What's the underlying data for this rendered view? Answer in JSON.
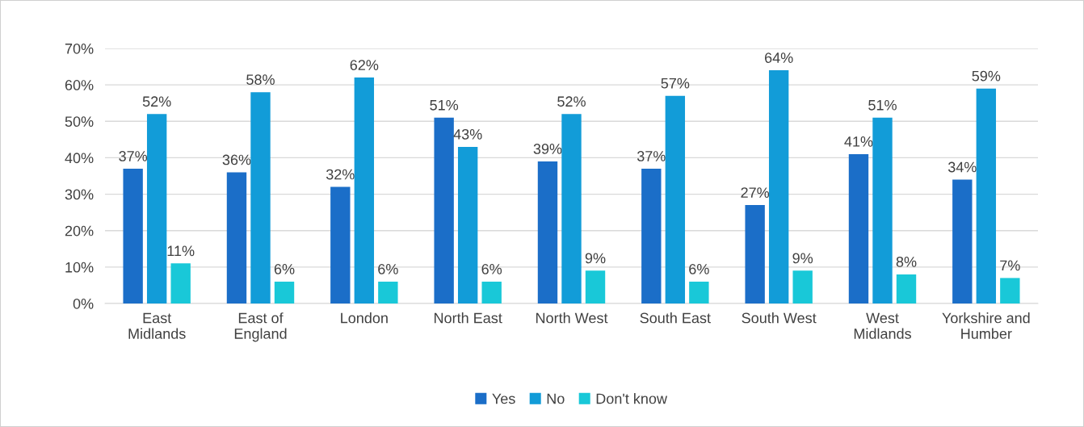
{
  "chart_data": {
    "type": "bar",
    "categories": [
      "East\nMidlands",
      "East of\nEngland",
      "London",
      "North East",
      "North West",
      "South East",
      "South West",
      "West\nMidlands",
      "Yorkshire and\nHumber"
    ],
    "series": [
      {
        "name": "Yes",
        "color": "#1b6ec8",
        "values": [
          37,
          36,
          32,
          51,
          39,
          37,
          27,
          41,
          34
        ],
        "value_labels": [
          "37%",
          "36%",
          "32%",
          "51%",
          "39%",
          "37%",
          "27%",
          "41%",
          "34%"
        ]
      },
      {
        "name": "No",
        "color": "#129cd8",
        "values": [
          52,
          58,
          62,
          43,
          52,
          57,
          64,
          51,
          59
        ],
        "value_labels": [
          "52%",
          "58%",
          "62%",
          "43%",
          "52%",
          "57%",
          "64%",
          "51%",
          "59%"
        ]
      },
      {
        "name": "Don't know",
        "color": "#19c8d8",
        "values": [
          11,
          6,
          6,
          6,
          9,
          6,
          9,
          8,
          7
        ],
        "value_labels": [
          "11%",
          "6%",
          "6%",
          "6%",
          "9%",
          "6%",
          "9%",
          "8%",
          "7%"
        ]
      }
    ],
    "ylim": [
      0,
      70
    ],
    "yticks": [
      {
        "value": 0,
        "label": "0%"
      },
      {
        "value": 10,
        "label": "10%"
      },
      {
        "value": 20,
        "label": "20%"
      },
      {
        "value": 30,
        "label": "30%"
      },
      {
        "value": 40,
        "label": "40%"
      },
      {
        "value": 50,
        "label": "50%"
      },
      {
        "value": 60,
        "label": "60%"
      },
      {
        "value": 70,
        "label": "70%"
      }
    ],
    "grid": "y",
    "legend": "bottom"
  }
}
